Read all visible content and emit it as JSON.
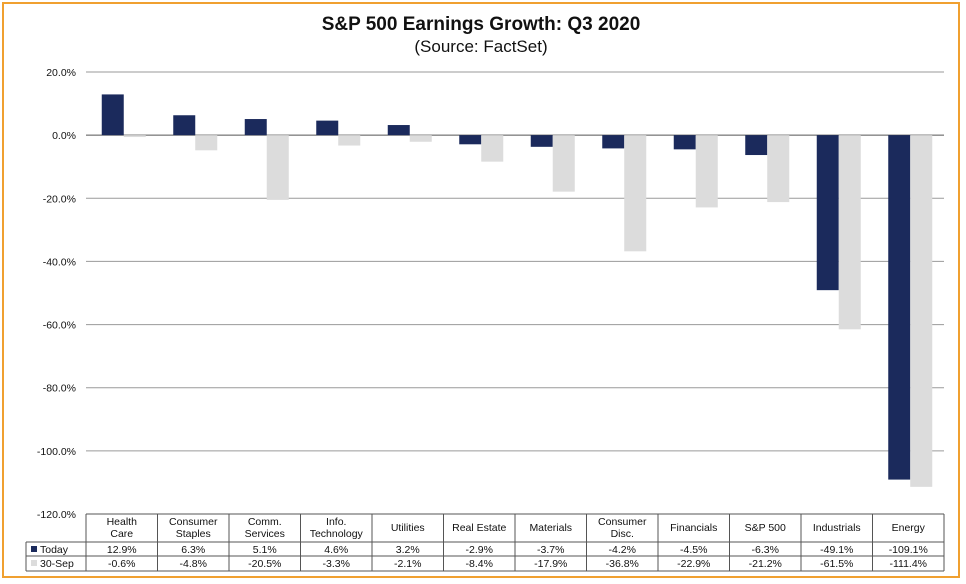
{
  "chart_data": {
    "type": "bar",
    "title": "S&P 500 Earnings Growth: Q3 2020",
    "subtitle": "(Source: FactSet)",
    "xlabel": "",
    "ylabel": "",
    "ylim": [
      -120,
      20
    ],
    "yticks": [
      20,
      0,
      -20,
      -40,
      -60,
      -80,
      -100,
      -120
    ],
    "ytick_labels": [
      "20.0%",
      "0.0%",
      "-20.0%",
      "-40.0%",
      "-60.0%",
      "-80.0%",
      "-100.0%",
      "-120.0%"
    ],
    "grid": true,
    "legend_position": "data-table-left",
    "categories": [
      [
        "Health",
        "Care"
      ],
      [
        "Consumer",
        "Staples"
      ],
      [
        "Comm.",
        "Services"
      ],
      [
        "Info.",
        "Technology"
      ],
      [
        "Utilities"
      ],
      [
        "Real Estate"
      ],
      [
        "Materials"
      ],
      [
        "Consumer",
        "Disc."
      ],
      [
        "Financials"
      ],
      [
        "S&P 500"
      ],
      [
        "Industrials"
      ],
      [
        "Energy"
      ]
    ],
    "series": [
      {
        "name": "Today",
        "color": "#1b2a5c",
        "values": [
          12.9,
          6.3,
          5.1,
          4.6,
          3.2,
          -2.9,
          -3.7,
          -4.2,
          -4.5,
          -6.3,
          -49.1,
          -109.1
        ],
        "labels": [
          "12.9%",
          "6.3%",
          "5.1%",
          "4.6%",
          "3.2%",
          "-2.9%",
          "-3.7%",
          "-4.2%",
          "-4.5%",
          "-6.3%",
          "-49.1%",
          "-109.1%"
        ]
      },
      {
        "name": "30-Sep",
        "color": "#dcdcdc",
        "values": [
          -0.6,
          -4.8,
          -20.5,
          -3.3,
          -2.1,
          -8.4,
          -17.9,
          -36.8,
          -22.9,
          -21.2,
          -61.5,
          -111.4
        ],
        "labels": [
          "-0.6%",
          "-4.8%",
          "-20.5%",
          "-3.3%",
          "-2.1%",
          "-8.4%",
          "-17.9%",
          "-36.8%",
          "-22.9%",
          "-21.2%",
          "-61.5%",
          "-111.4%"
        ]
      }
    ]
  },
  "colors": {
    "frame_border": "#f0a030",
    "gridline": "#9a9a9a",
    "table_line": "#555555"
  }
}
